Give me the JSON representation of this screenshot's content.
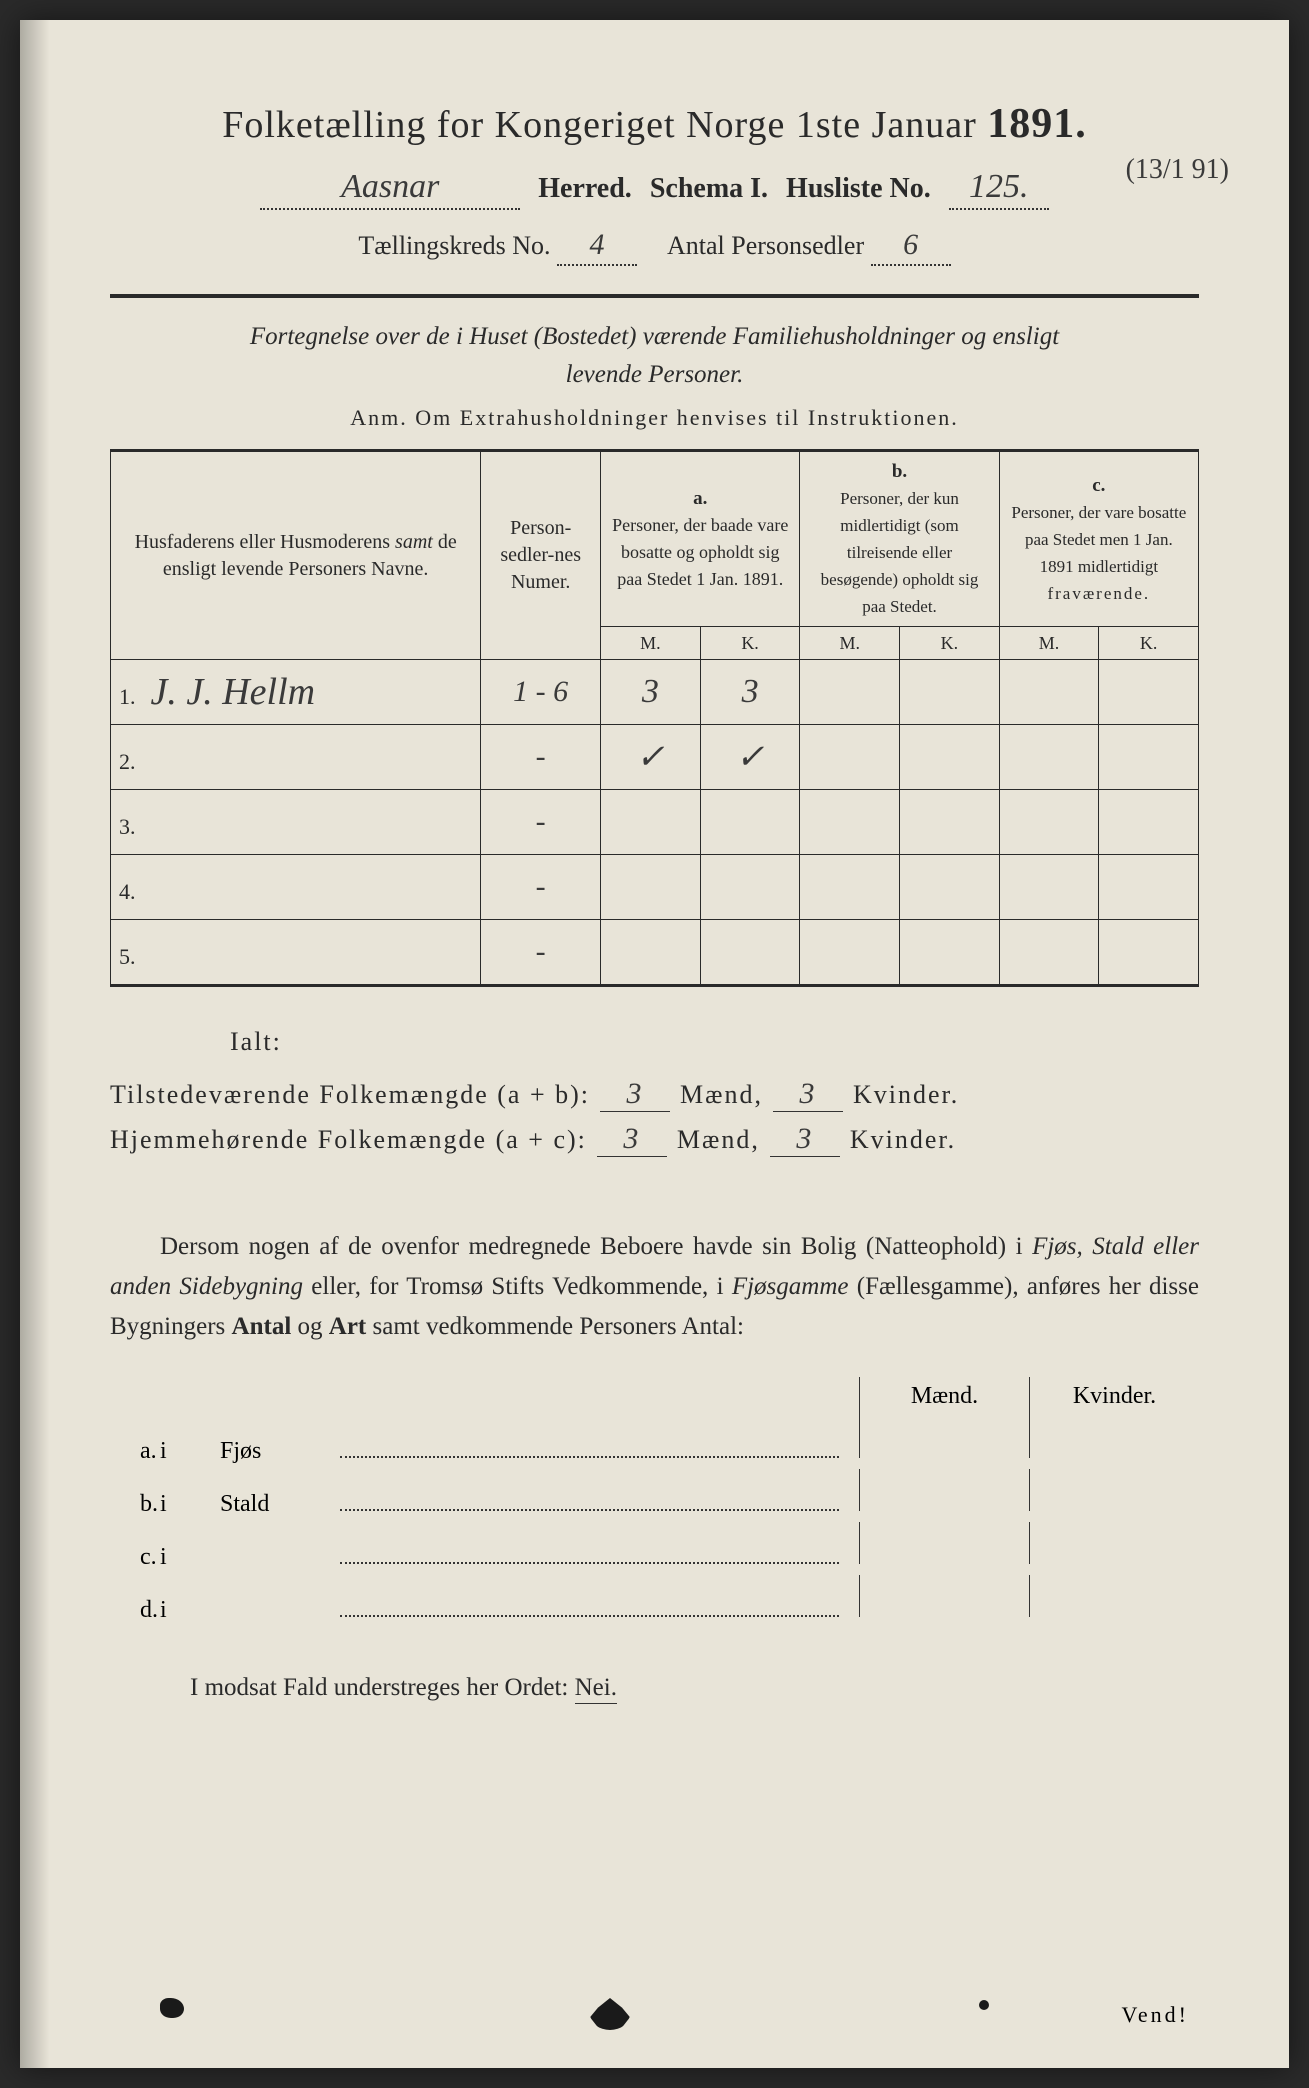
{
  "title": {
    "main": "Folketælling for Kongeriget Norge 1ste Januar",
    "year": "1891."
  },
  "header": {
    "herred_value": "Aasnar",
    "herred_label": "Herred.",
    "schema_label": "Schema I.",
    "husliste_label": "Husliste No.",
    "husliste_value": "125.",
    "margin_note": "(13/1 91)",
    "kreds_label": "Tællingskreds No.",
    "kreds_value": "4",
    "personsedler_label": "Antal Personsedler",
    "personsedler_value": "6"
  },
  "subtitle": {
    "line1": "Fortegnelse over de i Huset (Bostedet) værende Familiehusholdninger og ensligt",
    "line2": "levende Personer.",
    "anm": "Anm.  Om Extrahusholdninger henvises til Instruktionen."
  },
  "table": {
    "headers": {
      "name": "Husfaderens eller Husmoderens samt de ensligt levende Personers Navne.",
      "num": "Person-sedler-nes Numer.",
      "a_label": "a.",
      "a_text": "Personer, der baade vare bosatte og opholdt sig paa Stedet 1 Jan. 1891.",
      "b_label": "b.",
      "b_text": "Personer, der kun midlertidigt (som tilreisende eller besøgende) opholdt sig paa Stedet.",
      "c_label": "c.",
      "c_text": "Personer, der vare bosatte paa Stedet men 1 Jan. 1891 midlertidigt fraværende.",
      "m": "M.",
      "k": "K."
    },
    "rows": [
      {
        "n": "1.",
        "name": "J. J. Hellm",
        "num": "1 - 6",
        "a_m": "3",
        "a_k": "3",
        "b_m": "",
        "b_k": "",
        "c_m": "",
        "c_k": ""
      },
      {
        "n": "2.",
        "name": "",
        "num": "-",
        "a_m": "✓",
        "a_k": "✓",
        "b_m": "",
        "b_k": "",
        "c_m": "",
        "c_k": ""
      },
      {
        "n": "3.",
        "name": "",
        "num": "-",
        "a_m": "",
        "a_k": "",
        "b_m": "",
        "b_k": "",
        "c_m": "",
        "c_k": ""
      },
      {
        "n": "4.",
        "name": "",
        "num": "-",
        "a_m": "",
        "a_k": "",
        "b_m": "",
        "b_k": "",
        "c_m": "",
        "c_k": ""
      },
      {
        "n": "5.",
        "name": "",
        "num": "-",
        "a_m": "",
        "a_k": "",
        "b_m": "",
        "b_k": "",
        "c_m": "",
        "c_k": ""
      }
    ]
  },
  "summary": {
    "ialt": "Ialt:",
    "line1_label": "Tilstedeværende Folkemængde (a + b):",
    "line2_label": "Hjemmehørende Folkemængde (a + c):",
    "maend": "Mænd,",
    "kvinder": "Kvinder.",
    "ab_m": "3",
    "ab_k": "3",
    "ac_m": "3",
    "ac_k": "3"
  },
  "paragraph": {
    "text1": "Dersom nogen af de ovenfor medregnede Beboere havde sin Bolig (Natteophold) i ",
    "italic1": "Fjøs, Stald eller anden Sidebygning",
    "text2": " eller, for Tromsø Stifts Vedkommende, i ",
    "italic2": "Fjøsgamme",
    "text3": " (Fællesgamme), anføres her disse Bygningers ",
    "bold1": "Antal",
    "text4": " og ",
    "bold2": "Art",
    "text5": " samt vedkommende Personers Antal:"
  },
  "buildings": {
    "col_m": "Mænd.",
    "col_k": "Kvinder.",
    "rows": [
      {
        "label": "a.",
        "i": "i",
        "type": "Fjøs"
      },
      {
        "label": "b.",
        "i": "i",
        "type": "Stald"
      },
      {
        "label": "c.",
        "i": "i",
        "type": ""
      },
      {
        "label": "d.",
        "i": "i",
        "type": ""
      }
    ]
  },
  "nei_line": {
    "text": "I modsat Fald understreges her Ordet:",
    "nei": "Nei."
  },
  "vend": "Vend!",
  "colors": {
    "paper": "#e8e4d8",
    "ink": "#2a2a2a",
    "handwriting": "#3a3a3a",
    "background": "#2a2a2a"
  }
}
